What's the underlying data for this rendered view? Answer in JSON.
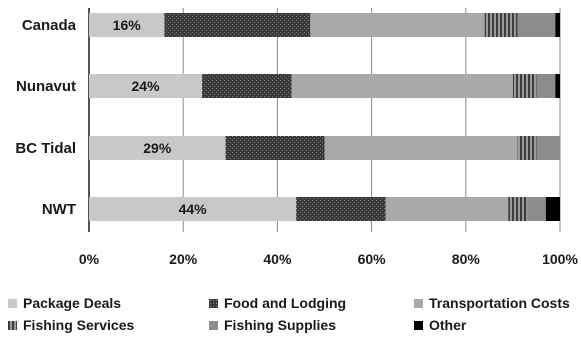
{
  "chart_data": {
    "type": "bar",
    "orientation": "horizontal",
    "stacked": true,
    "percent": true,
    "categories": [
      "Canada",
      "Nunavut",
      "BC Tidal",
      "NWT"
    ],
    "series": [
      {
        "name": "Package Deals",
        "values": [
          16,
          24,
          29,
          44
        ],
        "color": "#c8c8c8",
        "pattern": "solid"
      },
      {
        "name": "Food and Lodging",
        "values": [
          31,
          19,
          21,
          19
        ],
        "color": "#3a3a3a",
        "pattern": "dots"
      },
      {
        "name": "Transportation Costs",
        "values": [
          37,
          47,
          41,
          26
        ],
        "color": "#a9a9a9",
        "pattern": "solid"
      },
      {
        "name": "Fishing Services",
        "values": [
          7,
          5,
          4,
          4
        ],
        "color": "#707070",
        "pattern": "stripes"
      },
      {
        "name": "Fishing Supplies",
        "values": [
          8,
          4,
          5,
          4
        ],
        "color": "#8c8c8c",
        "pattern": "solid"
      },
      {
        "name": "Other",
        "values": [
          1,
          1,
          0,
          3
        ],
        "color": "#000000",
        "pattern": "solid"
      }
    ],
    "data_labels": [
      "16%",
      "24%",
      "29%",
      "44%"
    ],
    "x_ticks": [
      "0%",
      "20%",
      "40%",
      "60%",
      "80%",
      "100%"
    ],
    "xlim": [
      0,
      100
    ],
    "grid": true,
    "legend_position": "bottom"
  }
}
